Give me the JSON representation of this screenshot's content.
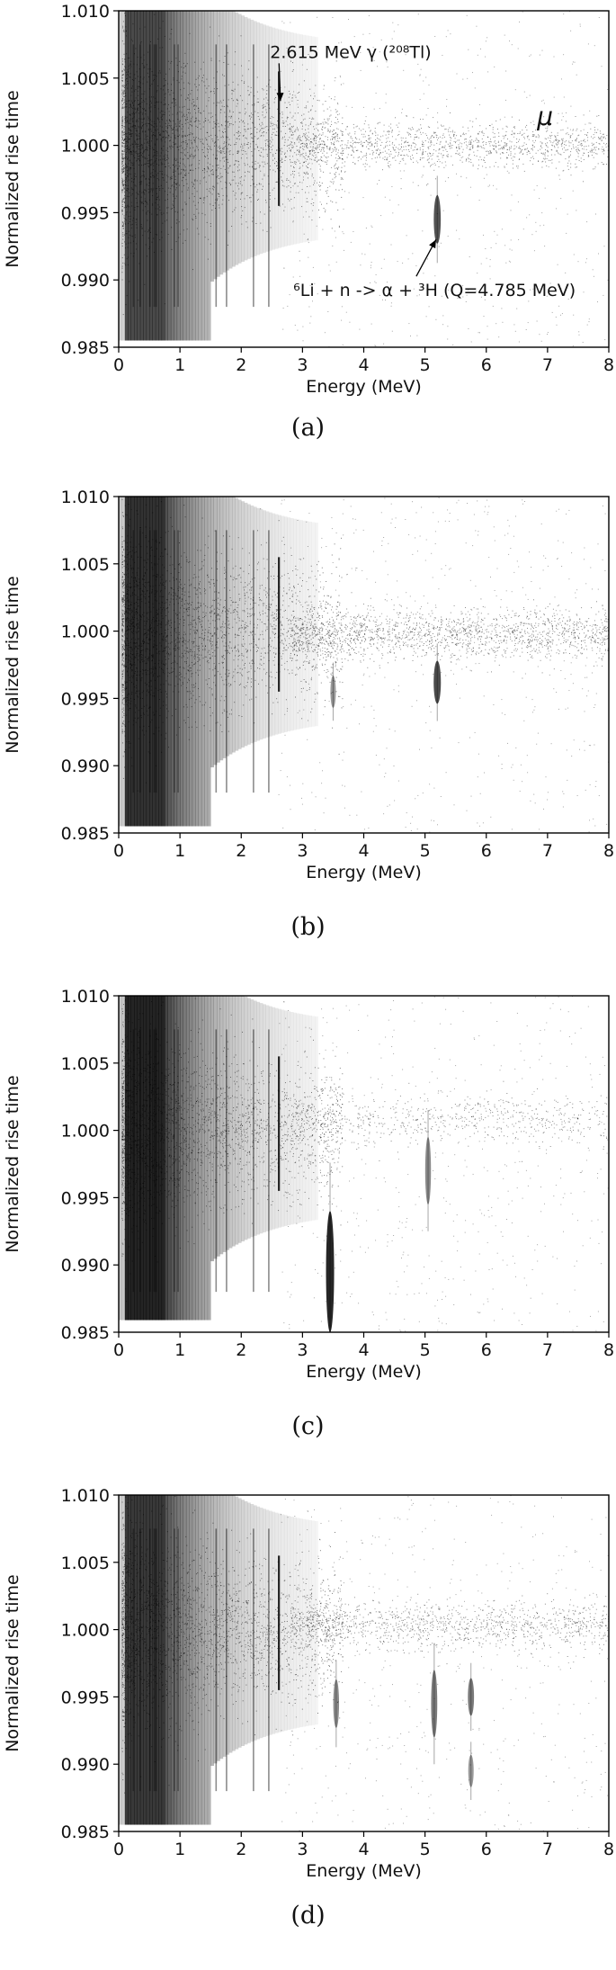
{
  "chart_data": [
    {
      "type": "scatter",
      "caption": "(a)",
      "xlabel": "Energy (MeV)",
      "ylabel": "Normalized rise time",
      "xlim": [
        0,
        8
      ],
      "ylim": [
        0.985,
        1.01
      ],
      "xticks": [
        "0",
        "1",
        "2",
        "3",
        "4",
        "5",
        "6",
        "7",
        "8"
      ],
      "yticks": [
        "0.985",
        "0.990",
        "0.995",
        "1.000",
        "1.005",
        "1.010"
      ],
      "gamma_lines": [
        0.24,
        0.35,
        0.51,
        0.58,
        0.61,
        0.91,
        0.97,
        1.59,
        1.76,
        2.2,
        2.45,
        2.615
      ],
      "alpha_features": [
        {
          "x": 5.2,
          "y": 0.9945,
          "y_spread": 0.0018,
          "strength": 0.7
        }
      ],
      "muon_band": {
        "x_from": 2.8,
        "x_to": 8,
        "y": 1.0,
        "strength": 0.6
      },
      "annotations": [
        {
          "text": "2.615 MeV γ (²⁰⁸Tl)",
          "text_x": 2.47,
          "text_y": 1.0065,
          "arrow_to_x": 2.64,
          "arrow_to_y": 1.0033
        },
        {
          "text": "⁶Li + n -> α + ³H (Q=4.785 MeV)",
          "text_x": 2.85,
          "text_y": 0.9888,
          "arrow_to_x": 5.18,
          "arrow_to_y": 0.993
        },
        {
          "text": "μ",
          "text_x": 6.83,
          "text_y": 1.0015
        }
      ]
    },
    {
      "type": "scatter",
      "caption": "(b)",
      "xlabel": "Energy (MeV)",
      "ylabel": "Normalized rise time",
      "xlim": [
        0,
        8
      ],
      "ylim": [
        0.985,
        1.01
      ],
      "xticks": [
        "0",
        "1",
        "2",
        "3",
        "4",
        "5",
        "6",
        "7",
        "8"
      ],
      "yticks": [
        "0.985",
        "0.990",
        "0.995",
        "1.000",
        "1.005",
        "1.010"
      ],
      "gamma_lines": [
        0.24,
        0.35,
        0.51,
        0.58,
        0.61,
        0.91,
        0.97,
        1.59,
        1.76,
        2.2,
        2.45,
        2.615
      ],
      "alpha_features": [
        {
          "x": 3.5,
          "y": 0.9955,
          "y_spread": 0.0012,
          "strength": 0.25
        },
        {
          "x": 5.2,
          "y": 0.9962,
          "y_spread": 0.0016,
          "strength": 0.75
        }
      ],
      "muon_band": {
        "x_from": 2.8,
        "x_to": 8,
        "y": 0.9998,
        "strength": 0.8
      }
    },
    {
      "type": "scatter",
      "caption": "(c)",
      "xlabel": "Energy (MeV)",
      "ylabel": "Normalized rise time",
      "xlim": [
        0,
        8
      ],
      "ylim": [
        0.985,
        1.01
      ],
      "xticks": [
        "0",
        "1",
        "2",
        "3",
        "4",
        "5",
        "6",
        "7",
        "8"
      ],
      "yticks": [
        "0.985",
        "0.990",
        "0.995",
        "1.000",
        "1.005",
        "1.010"
      ],
      "gamma_lines": [
        0.24,
        0.35,
        0.51,
        0.58,
        0.61,
        0.91,
        0.97,
        1.59,
        1.76,
        2.2,
        2.45,
        2.615
      ],
      "alpha_features": [
        {
          "x": 3.45,
          "y": 0.9895,
          "y_spread": 0.0045,
          "strength": 1.0
        },
        {
          "x": 5.05,
          "y": 0.997,
          "y_spread": 0.0025,
          "strength": 0.35
        }
      ],
      "muon_band": {
        "x_from": 2.8,
        "x_to": 8,
        "y": 1.0008,
        "strength": 0.3
      }
    },
    {
      "type": "scatter",
      "caption": "(d)",
      "xlabel": "Energy (MeV)",
      "ylabel": "Normalized rise time",
      "xlim": [
        0,
        8
      ],
      "ylim": [
        0.985,
        1.01
      ],
      "xticks": [
        "0",
        "1",
        "2",
        "3",
        "4",
        "5",
        "6",
        "7",
        "8"
      ],
      "yticks": [
        "0.985",
        "0.990",
        "0.995",
        "1.000",
        "1.005",
        "1.010"
      ],
      "gamma_lines": [
        0.24,
        0.35,
        0.51,
        0.58,
        0.61,
        0.91,
        0.97,
        1.59,
        1.76,
        2.2,
        2.45,
        2.615
      ],
      "alpha_features": [
        {
          "x": 3.55,
          "y": 0.9945,
          "y_spread": 0.0018,
          "strength": 0.35
        },
        {
          "x": 5.15,
          "y": 0.9945,
          "y_spread": 0.0025,
          "strength": 0.45
        },
        {
          "x": 5.75,
          "y": 0.995,
          "y_spread": 0.0014,
          "strength": 0.45
        },
        {
          "x": 5.75,
          "y": 0.9895,
          "y_spread": 0.0012,
          "strength": 0.25
        }
      ],
      "muon_band": {
        "x_from": 2.8,
        "x_to": 8,
        "y": 1.0003,
        "strength": 0.55
      }
    }
  ]
}
